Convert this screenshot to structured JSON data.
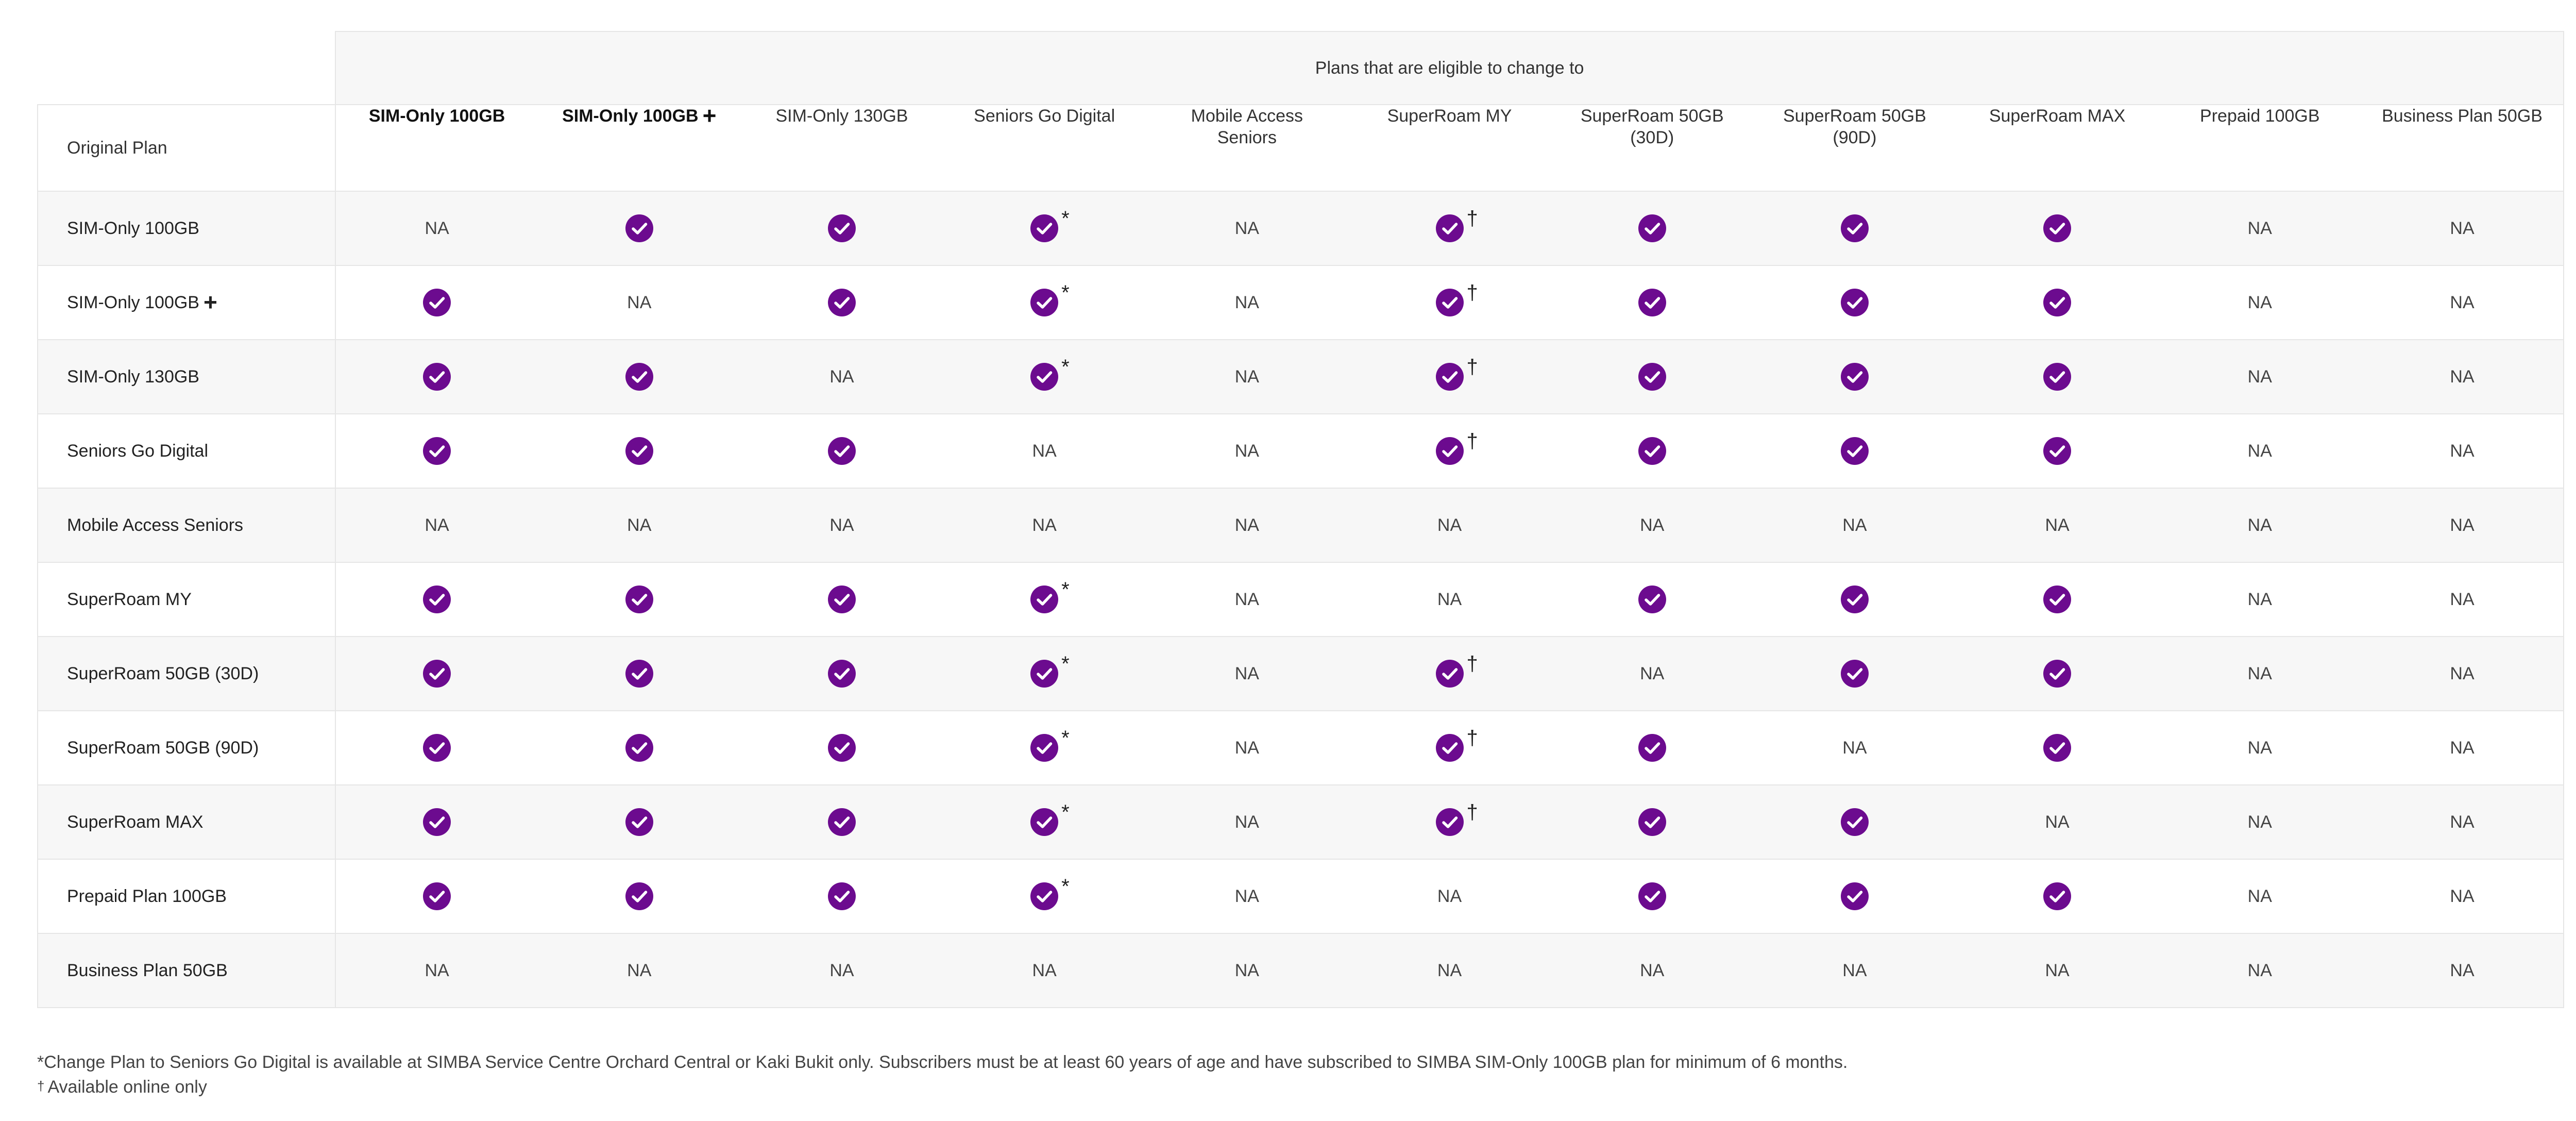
{
  "header": {
    "eligible_label": "Plans that are eligible to change to",
    "original_plan_label": "Original Plan"
  },
  "columns": [
    {
      "label": "SIM-Only 100GB",
      "bold": true,
      "plus": false
    },
    {
      "label": "SIM-Only 100GB",
      "bold": true,
      "plus": true
    },
    {
      "label": "SIM-Only 130GB",
      "bold": false,
      "plus": false
    },
    {
      "label": "Seniors Go Digital",
      "bold": false,
      "plus": false
    },
    {
      "label": "Mobile Access Seniors",
      "bold": false,
      "plus": false
    },
    {
      "label": "SuperRoam MY",
      "bold": false,
      "plus": false
    },
    {
      "label": "SuperRoam 50GB (30D)",
      "bold": false,
      "plus": false
    },
    {
      "label": "SuperRoam 50GB (90D)",
      "bold": false,
      "plus": false
    },
    {
      "label": "SuperRoam MAX",
      "bold": false,
      "plus": false
    },
    {
      "label": "Prepaid 100GB",
      "bold": false,
      "plus": false
    },
    {
      "label": "Business Plan 50GB",
      "bold": false,
      "plus": false
    }
  ],
  "na_text": "NA",
  "plus_glyph": "+",
  "asterisk_mark": "*",
  "dagger_mark": "†",
  "check_color": "#6c0b8f",
  "rows": [
    {
      "label": "SIM-Only 100GB",
      "plus": false,
      "cells": [
        "NA",
        "check",
        "check",
        "check*",
        "NA",
        "check†",
        "check",
        "check",
        "check",
        "NA",
        "NA"
      ]
    },
    {
      "label": "SIM-Only 100GB",
      "plus": true,
      "cells": [
        "check",
        "NA",
        "check",
        "check*",
        "NA",
        "check†",
        "check",
        "check",
        "check",
        "NA",
        "NA"
      ]
    },
    {
      "label": "SIM-Only 130GB",
      "plus": false,
      "cells": [
        "check",
        "check",
        "NA",
        "check*",
        "NA",
        "check†",
        "check",
        "check",
        "check",
        "NA",
        "NA"
      ]
    },
    {
      "label": "Seniors Go Digital",
      "plus": false,
      "cells": [
        "check",
        "check",
        "check",
        "NA",
        "NA",
        "check†",
        "check",
        "check",
        "check",
        "NA",
        "NA"
      ]
    },
    {
      "label": "Mobile Access Seniors",
      "plus": false,
      "cells": [
        "NA",
        "NA",
        "NA",
        "NA",
        "NA",
        "NA",
        "NA",
        "NA",
        "NA",
        "NA",
        "NA"
      ]
    },
    {
      "label": "SuperRoam MY",
      "plus": false,
      "cells": [
        "check",
        "check",
        "check",
        "check*",
        "NA",
        "NA",
        "check",
        "check",
        "check",
        "NA",
        "NA"
      ]
    },
    {
      "label": "SuperRoam 50GB (30D)",
      "plus": false,
      "cells": [
        "check",
        "check",
        "check",
        "check*",
        "NA",
        "check†",
        "NA",
        "check",
        "check",
        "NA",
        "NA"
      ]
    },
    {
      "label": "SuperRoam 50GB (90D)",
      "plus": false,
      "cells": [
        "check",
        "check",
        "check",
        "check*",
        "NA",
        "check†",
        "check",
        "NA",
        "check",
        "NA",
        "NA"
      ]
    },
    {
      "label": "SuperRoam MAX",
      "plus": false,
      "cells": [
        "check",
        "check",
        "check",
        "check*",
        "NA",
        "check†",
        "check",
        "check",
        "NA",
        "NA",
        "NA"
      ]
    },
    {
      "label": "Prepaid Plan 100GB",
      "plus": false,
      "cells": [
        "check",
        "check",
        "check",
        "check*",
        "NA",
        "NA",
        "check",
        "check",
        "check",
        "NA",
        "NA"
      ]
    },
    {
      "label": "Business Plan 50GB",
      "plus": false,
      "cells": [
        "NA",
        "NA",
        "NA",
        "NA",
        "NA",
        "NA",
        "NA",
        "NA",
        "NA",
        "NA",
        "NA"
      ]
    }
  ],
  "footnotes": {
    "asterisk_note": "*Change Plan to Seniors Go Digital is available at SIMBA Service Centre Orchard Central or Kaki Bukit only. Subscribers must be at least 60 years of age and have subscribed to SIMBA SIM-Only 100GB plan for minimum of 6 months.",
    "dagger_symbol": "†",
    "dagger_note": "Available online only"
  }
}
